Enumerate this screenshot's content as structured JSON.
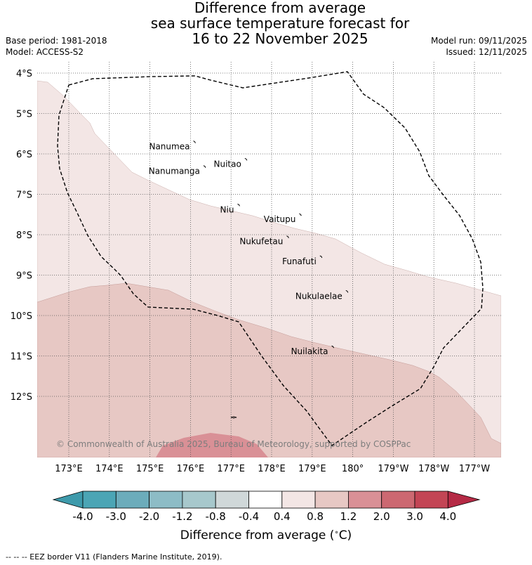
{
  "title": {
    "line1": "Difference from average",
    "line2": "sea surface temperature forecast for",
    "line3": "16 to 22 November 2025"
  },
  "meta": {
    "base_period": "Base period: 1981-2018",
    "model": "Model: ACCESS-S2",
    "model_run": "Model run: 09/11/2025",
    "issued": "Issued: 12/11/2025"
  },
  "map": {
    "lon_labels": [
      "173°E",
      "174°E",
      "175°E",
      "176°E",
      "177°E",
      "178°E",
      "179°E",
      "180°",
      "179°W",
      "178°W",
      "177°W"
    ],
    "lat_labels": [
      "4°S",
      "5°S",
      "6°S",
      "7°S",
      "8°S",
      "9°S",
      "10°S",
      "11°S",
      "12°S"
    ],
    "islands": [
      {
        "name": "Nanumea",
        "lon": 176.07,
        "lat": -5.68
      },
      {
        "name": "Nuitao",
        "lon": 177.34,
        "lat": -6.11
      },
      {
        "name": "Nanumanga",
        "lon": 176.32,
        "lat": -6.29
      },
      {
        "name": "Niu",
        "lon": 177.16,
        "lat": -7.24
      },
      {
        "name": "Vaitupu",
        "lon": 178.68,
        "lat": -7.48
      },
      {
        "name": "Nukufetau",
        "lon": 178.37,
        "lat": -8.03
      },
      {
        "name": "Funafuti",
        "lon": 179.19,
        "lat": -8.52
      },
      {
        "name": "Nukulaelae",
        "lon": 179.83,
        "lat": -9.38
      },
      {
        "name": "Nuilakita",
        "lon": 179.48,
        "lat": -10.75
      }
    ],
    "copyright": "© Commonwealth of Australia 2025, Bureau of Meteorology, supported by COSPPac"
  },
  "colorbar": {
    "ticks": [
      "-4.0",
      "-3.0",
      "-2.0",
      "-1.2",
      "-0.8",
      "-0.4",
      "0.4",
      "0.8",
      "1.2",
      "2.0",
      "3.0",
      "4.0"
    ],
    "colors": [
      "#3e9aab",
      "#4ba5b5",
      "#6cacbb",
      "#8dbcc6",
      "#a7c8cc",
      "#d0d8d9",
      "#ffffff",
      "#f3e6e5",
      "#e7c8c4",
      "#d99096",
      "#cc6871",
      "#c34555",
      "#b52a45"
    ],
    "label": "Difference from average ($^\\circ$C)",
    "label_text": "Difference from average (",
    "label_unit": "C)"
  },
  "footer": "--  --  -- EEZ border V11 (Flanders Marine Institute, 2019)."
}
